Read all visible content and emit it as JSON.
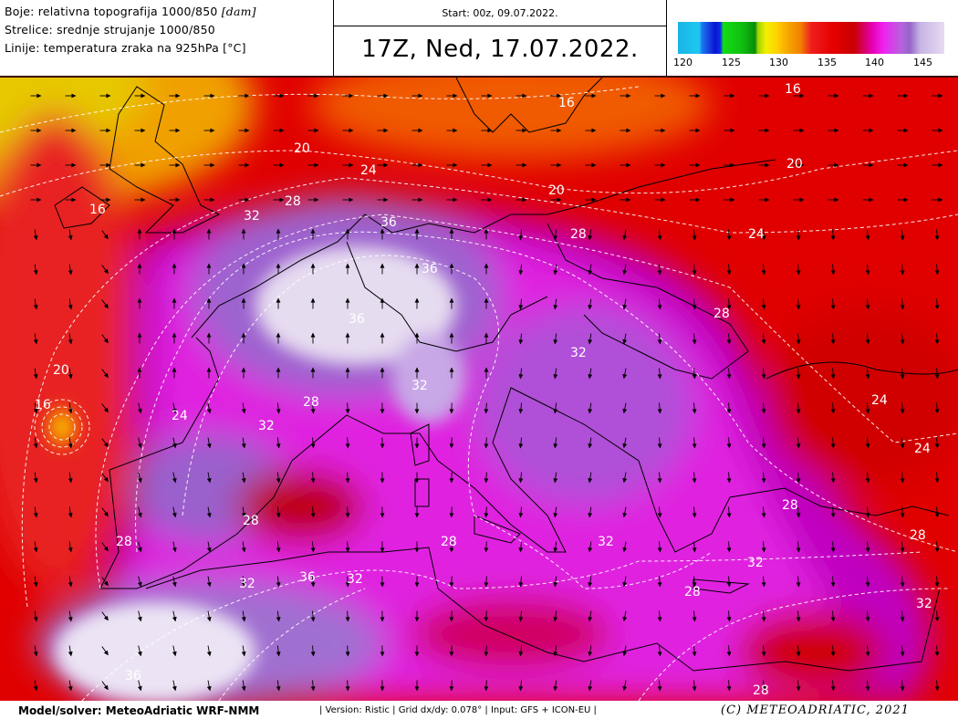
{
  "header": {
    "legend": {
      "colors_line": "Boje: relativna topografija 1000/850",
      "colors_unit": "[dam]",
      "arrows_line": "Strelice: srednje strujanje 1000/850",
      "lines_line": "Linije: temperatura zraka na 925hPa [°C]"
    },
    "start": "Start: 00z, 09.07.2022.",
    "valid_time": "17Z, Ned, 17.07.2022.",
    "colorbar": {
      "ticks": [
        "120",
        "125",
        "130",
        "135",
        "140",
        "145"
      ],
      "range": [
        120,
        147
      ],
      "colors": [
        "#19b4e6",
        "#0a14d2",
        "#14dc14",
        "#f0f000",
        "#f08200",
        "#e60000",
        "#c80000",
        "#f020f0",
        "#9664c8",
        "#e6dcf0"
      ]
    }
  },
  "map": {
    "contour_labels": [
      "16",
      "16",
      "20",
      "24",
      "20",
      "20",
      "16",
      "28",
      "32",
      "36",
      "28",
      "24",
      "36",
      "36",
      "28",
      "32",
      "20",
      "16",
      "24",
      "28",
      "32",
      "32",
      "24",
      "24",
      "28",
      "28",
      "28",
      "28",
      "32",
      "28",
      "32",
      "36",
      "32",
      "32",
      "28",
      "32",
      "36",
      "28"
    ]
  },
  "footer": {
    "model": "Model/solver: MeteoAdriatic WRF-NMM",
    "details": "| Version: Ristic | Grid dx/dy: 0.078° | Input: GFS + ICON-EU |",
    "copyright": "(C) METEOADRIATIC, 2021"
  }
}
